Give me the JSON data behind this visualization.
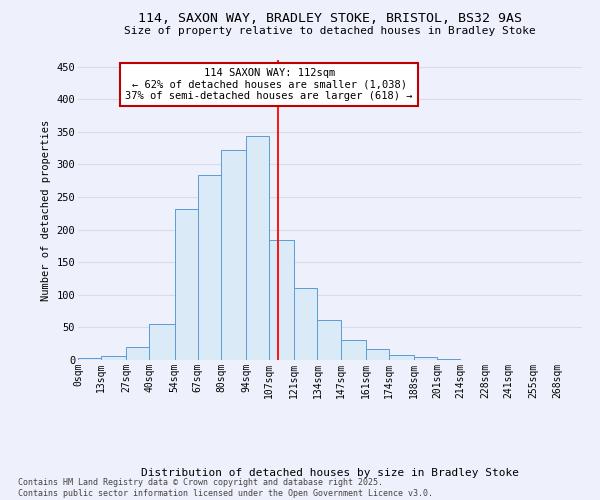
{
  "title": "114, SAXON WAY, BRADLEY STOKE, BRISTOL, BS32 9AS",
  "subtitle": "Size of property relative to detached houses in Bradley Stoke",
  "xlabel": "Distribution of detached houses by size in Bradley Stoke",
  "ylabel": "Number of detached properties",
  "bar_labels": [
    "0sqm",
    "13sqm",
    "27sqm",
    "40sqm",
    "54sqm",
    "67sqm",
    "80sqm",
    "94sqm",
    "107sqm",
    "121sqm",
    "134sqm",
    "147sqm",
    "161sqm",
    "174sqm",
    "188sqm",
    "201sqm",
    "214sqm",
    "228sqm",
    "241sqm",
    "255sqm",
    "268sqm"
  ],
  "bar_values": [
    3,
    6,
    20,
    55,
    232,
    283,
    322,
    344,
    184,
    111,
    62,
    30,
    17,
    7,
    4,
    1,
    0,
    0,
    0,
    0,
    0
  ],
  "bar_color": "#daeaf7",
  "bar_edge_color": "#5b9bd5",
  "vline_color": "red",
  "vline_x": 112,
  "annotation_text": "114 SAXON WAY: 112sqm\n← 62% of detached houses are smaller (1,038)\n37% of semi-detached houses are larger (618) →",
  "annotation_box_edgecolor": "#c00000",
  "annotation_facecolor": "white",
  "ylim": [
    0,
    460
  ],
  "yticks": [
    0,
    50,
    100,
    150,
    200,
    250,
    300,
    350,
    400,
    450
  ],
  "bg_color": "#eef1fb",
  "grid_color": "#d8dce8",
  "footnote": "Contains HM Land Registry data © Crown copyright and database right 2025.\nContains public sector information licensed under the Open Government Licence v3.0.",
  "bin_edges": [
    0,
    13,
    27,
    40,
    54,
    67,
    80,
    94,
    107,
    121,
    134,
    147,
    161,
    174,
    188,
    201,
    214,
    228,
    241,
    255,
    268,
    282
  ]
}
